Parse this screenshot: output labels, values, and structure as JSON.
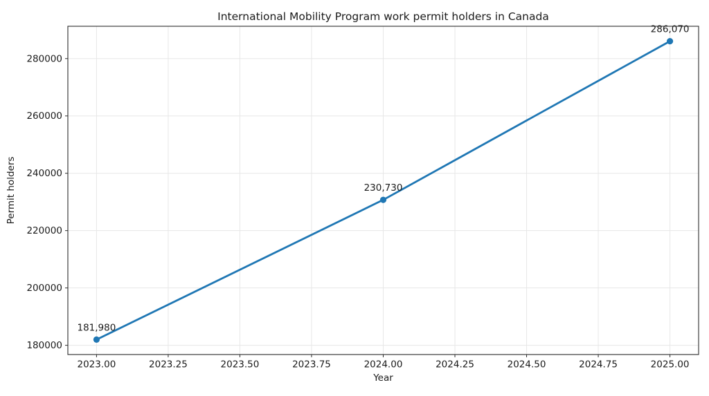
{
  "chart_data": {
    "type": "line",
    "title": "International Mobility Program work permit holders in Canada",
    "xlabel": "Year",
    "ylabel": "Permit holders",
    "x": [
      2023,
      2024,
      2025
    ],
    "values": [
      181980,
      230730,
      286070
    ],
    "point_labels": [
      "181,980",
      "230,730",
      "286,070"
    ],
    "x_ticks": [
      2023.0,
      2023.25,
      2023.5,
      2023.75,
      2024.0,
      2024.25,
      2024.5,
      2024.75,
      2025.0
    ],
    "x_tick_labels": [
      "2023.00",
      "2023.25",
      "2023.50",
      "2023.75",
      "2024.00",
      "2024.25",
      "2024.50",
      "2024.75",
      "2025.00"
    ],
    "y_ticks": [
      180000,
      200000,
      220000,
      240000,
      260000,
      280000
    ],
    "y_tick_labels": [
      "180000",
      "200000",
      "220000",
      "240000",
      "260000",
      "280000"
    ],
    "xlim": [
      2022.9,
      2025.1
    ],
    "ylim": [
      176775,
      291275
    ],
    "grid": true,
    "legend": false,
    "line_color": "#1f77b4",
    "marker_color": "#1f77b4",
    "grid_color": "#e7e7e7",
    "spine_color": "#2b2b2b",
    "text_color": "#1a1a1a"
  }
}
